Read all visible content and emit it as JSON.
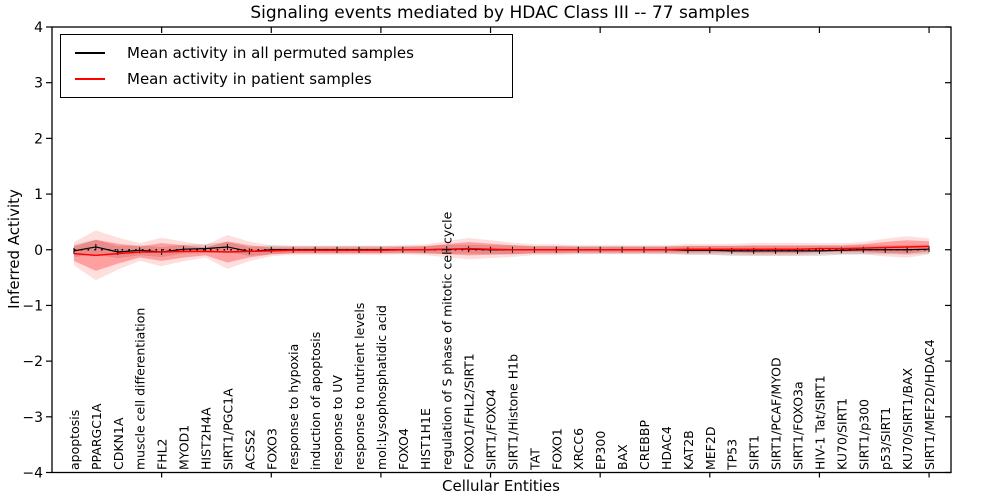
{
  "title": "Signaling events mediated by HDAC Class III -- 77 samples",
  "legend": {
    "items": [
      {
        "label": "Mean activity in all permuted samples",
        "color": "#000000"
      },
      {
        "label": "Mean activity in patient samples",
        "color": "#ff0000"
      }
    ]
  },
  "axes": {
    "ylabel": "Inferred Activity",
    "xlabel": "Cellular Entities",
    "ytick_labels": [
      "4",
      "3",
      "2",
      "1",
      "0",
      "−1",
      "−2",
      "−3",
      "−4"
    ],
    "ytick_values": [
      4,
      3,
      2,
      1,
      0,
      -1,
      -2,
      -3,
      -4
    ]
  },
  "chart_data": {
    "type": "line",
    "title": "Signaling events mediated by HDAC Class III -- 77 samples",
    "xlabel": "Cellular Entities",
    "ylabel": "Inferred Activity",
    "ylim": [
      -4,
      4
    ],
    "grid": false,
    "legend_position": "upper left",
    "categories": [
      "apoptosis",
      "PPARGC1A",
      "CDKN1A",
      "muscle cell differentiation",
      "FHL2",
      "MYOD1",
      "HIST2H4A",
      "SIRT1/PGC1A",
      "ACSS2",
      "FOXO3",
      "response to hypoxia",
      "induction of apoptosis",
      "response to UV",
      "response to nutrient levels",
      "mol:Lysophosphatidic acid",
      "FOXO4",
      "HIST1H1E",
      "regulation of S phase of mitotic cell cycle",
      "FOXO1/FHL2/SIRT1",
      "SIRT1/FOXO4",
      "SIRT1/Histone H1b",
      "TAT",
      "FOXO1",
      "XRCC6",
      "EP300",
      "BAX",
      "CREBBP",
      "HDAC4",
      "KAT2B",
      "MEF2D",
      "TP53",
      "SIRT1",
      "SIRT1/PCAF/MYOD",
      "SIRT1/FOXO3a",
      "HIV-1 Tat/SIRT1",
      "KU70/SIRT1",
      "SIRT1/p300",
      "p53/SIRT1",
      "KU70/SIRT1/BAX",
      "SIRT1/MEF2D/HDAC4"
    ],
    "x_major_tick_every": 5,
    "series": [
      {
        "name": "Mean activity in all permuted samples",
        "color": "#000000",
        "values": [
          -0.02,
          0.05,
          -0.04,
          -0.01,
          -0.04,
          0.01,
          0.02,
          0.05,
          -0.03,
          0.0,
          0.0,
          0.0,
          0.0,
          0.0,
          0.0,
          0.0,
          0.0,
          0.01,
          0.01,
          0.0,
          0.0,
          0.0,
          0.0,
          0.0,
          0.0,
          0.0,
          0.0,
          0.0,
          -0.01,
          -0.01,
          -0.02,
          -0.02,
          -0.02,
          -0.02,
          -0.02,
          -0.01,
          0.0,
          0.0,
          0.0,
          0.01
        ]
      },
      {
        "name": "Mean activity in patient samples",
        "color": "#ff0000",
        "values": [
          -0.07,
          -0.1,
          -0.07,
          -0.04,
          -0.04,
          -0.03,
          -0.03,
          -0.04,
          -0.03,
          -0.02,
          -0.01,
          -0.01,
          -0.01,
          -0.01,
          -0.01,
          0.0,
          0.0,
          0.01,
          0.02,
          0.01,
          0.0,
          0.0,
          0.0,
          0.0,
          0.0,
          0.0,
          0.0,
          0.0,
          0.01,
          0.01,
          0.01,
          0.01,
          0.01,
          0.01,
          0.02,
          0.02,
          0.03,
          0.04,
          0.05,
          0.06
        ]
      }
    ],
    "bands": [
      {
        "name": "permuted sample spread",
        "center_series": 0,
        "color": "rgba(0,0,0,0.13)",
        "half_widths": [
          0.11,
          0.13,
          0.11,
          0.09,
          0.09,
          0.08,
          0.08,
          0.09,
          0.08,
          0.08,
          0.07,
          0.07,
          0.07,
          0.07,
          0.07,
          0.07,
          0.07,
          0.08,
          0.08,
          0.08,
          0.08,
          0.07,
          0.07,
          0.07,
          0.07,
          0.07,
          0.07,
          0.07,
          0.08,
          0.08,
          0.09,
          0.09,
          0.09,
          0.09,
          0.09,
          0.08,
          0.08,
          0.08,
          0.09,
          0.08
        ]
      },
      {
        "name": "patient sample spread",
        "center_series": 1,
        "color": "rgba(255,0,0,0.28)",
        "half_widths": [
          0.13,
          0.28,
          0.18,
          0.1,
          0.16,
          0.11,
          0.07,
          0.19,
          0.11,
          0.06,
          0.05,
          0.05,
          0.05,
          0.05,
          0.05,
          0.05,
          0.06,
          0.09,
          0.12,
          0.1,
          0.08,
          0.06,
          0.06,
          0.05,
          0.05,
          0.05,
          0.05,
          0.05,
          0.06,
          0.06,
          0.06,
          0.07,
          0.07,
          0.07,
          0.06,
          0.06,
          0.07,
          0.1,
          0.12,
          0.09
        ]
      }
    ],
    "zero_line": {
      "style": "dotted",
      "color": "#000000",
      "value": 0
    }
  }
}
